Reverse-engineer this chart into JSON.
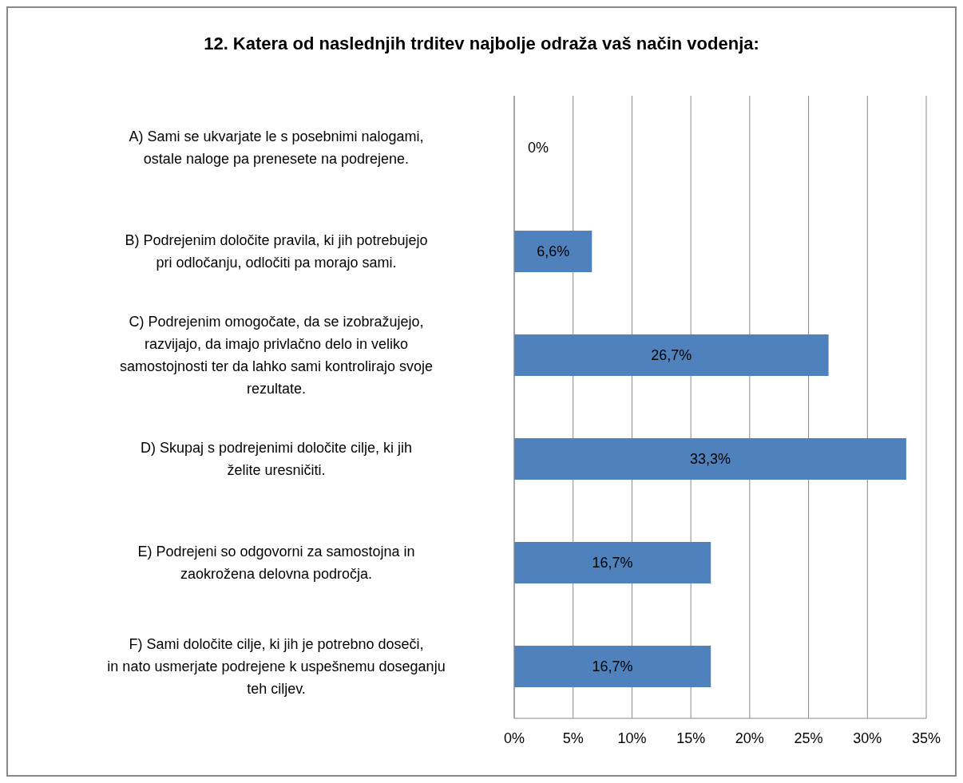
{
  "chart_data": {
    "type": "bar",
    "orientation": "horizontal",
    "title": "12. Katera od naslednjih trditev najbolje odraža vaš način vodenja:",
    "categories": [
      "A) Sami se ukvarjate le s posebnimi nalogami, ostale naloge pa prenesete na podrejene.",
      "B) Podrejenim določite pravila, ki jih potrebujejo pri odločanju, odločiti pa morajo sami.",
      "C) Podrejenim omogočate, da se izobražujejo, razvijajo, da imajo privlačno delo in veliko samostojnosti ter da lahko sami kontrolirajo svoje rezultate.",
      "D) Skupaj s podrejenimi določite cilje, ki jih želite uresničiti.",
      "E) Podrejeni so odgovorni za samostojna in zaokrožena delovna področja.",
      "F) Sami določite cilje, ki jih je potrebno doseči, in nato usmerjate podrejene k uspešnemu doseganju teh ciljev."
    ],
    "values": [
      0,
      6.6,
      26.7,
      33.3,
      16.7,
      16.7
    ],
    "value_labels": [
      "0%",
      "6,6%",
      "26,7%",
      "33,3%",
      "16,7%",
      "16,7%"
    ],
    "color": "#4f81bd",
    "xlim": [
      0,
      35
    ],
    "xticks": [
      {
        "value": 0,
        "label": "0%"
      },
      {
        "value": 5,
        "label": "5%"
      },
      {
        "value": 10,
        "label": "10%"
      },
      {
        "value": 15,
        "label": "15%"
      },
      {
        "value": 20,
        "label": "20%"
      },
      {
        "value": 25,
        "label": "25%"
      },
      {
        "value": 30,
        "label": "30%"
      },
      {
        "value": 35,
        "label": "35%"
      }
    ],
    "grid": "x",
    "legend": false
  }
}
